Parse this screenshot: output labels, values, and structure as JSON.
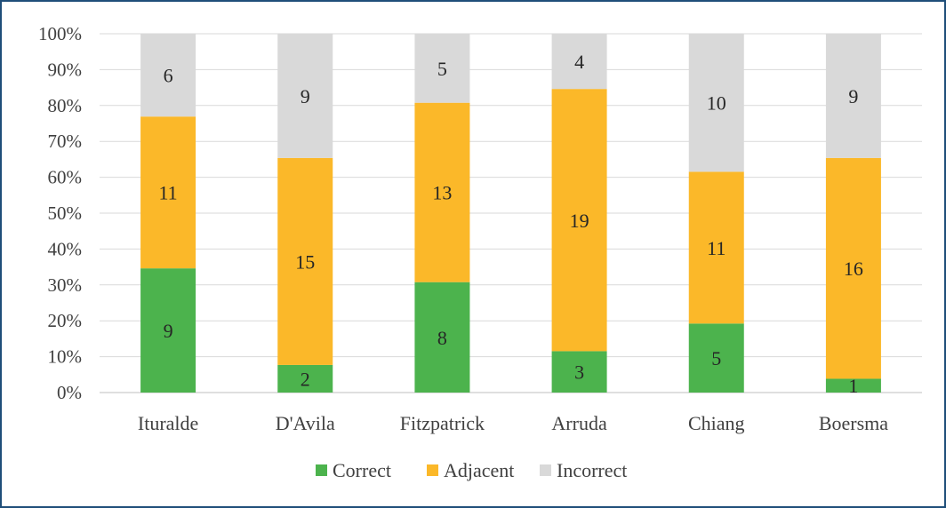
{
  "chart_data": {
    "type": "bar",
    "stacked": "percent",
    "categories": [
      "Ituralde",
      "D'Avila",
      "Fitzpatrick",
      "Arruda",
      "Chiang",
      "Boersma"
    ],
    "series": [
      {
        "name": "Correct",
        "values": [
          9,
          2,
          8,
          3,
          5,
          1
        ],
        "color": "#4CB34D"
      },
      {
        "name": "Adjacent",
        "values": [
          11,
          15,
          13,
          19,
          11,
          16
        ],
        "color": "#FBB829"
      },
      {
        "name": "Incorrect",
        "values": [
          6,
          9,
          5,
          4,
          10,
          9
        ],
        "color": "#D9D9D9"
      }
    ],
    "yticks": [
      "0%",
      "10%",
      "20%",
      "30%",
      "40%",
      "50%",
      "60%",
      "70%",
      "80%",
      "90%",
      "100%"
    ],
    "ylim": [
      0,
      100
    ],
    "grid": true,
    "legend_position": "bottom",
    "data_labels": true
  }
}
